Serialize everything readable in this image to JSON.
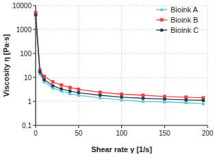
{
  "chart_data": {
    "type": "line",
    "x_label": "Shear rate γ [1/s]",
    "y_label": "Viscosity η [Pa·s]",
    "x": [
      0.1,
      5,
      10,
      20,
      30,
      40,
      50,
      75,
      100,
      125,
      150,
      175,
      195
    ],
    "series": [
      {
        "name": "Bioink A",
        "color": "#5bc8d8",
        "marker": "triangle",
        "values": [
          3000,
          14,
          6.5,
          3.6,
          2.7,
          2.1,
          1.8,
          1.4,
          1.15,
          1.0,
          0.95,
          0.88,
          0.8
        ]
      },
      {
        "name": "Bioink B",
        "color": "#e8474a",
        "marker": "square",
        "values": [
          5000,
          20,
          11,
          6.5,
          4.8,
          3.8,
          3.2,
          2.4,
          2.0,
          1.8,
          1.6,
          1.5,
          1.4
        ]
      },
      {
        "name": "Bioink C",
        "color": "#2d3e50",
        "marker": "circle",
        "values": [
          4000,
          17,
          8,
          4.5,
          3.3,
          2.7,
          2.3,
          1.8,
          1.5,
          1.35,
          1.25,
          1.15,
          1.1
        ]
      }
    ],
    "xlim": [
      0,
      200
    ],
    "xticks": [
      0,
      50,
      100,
      150,
      200
    ],
    "ylim": [
      0.1,
      10000
    ],
    "yticks": [
      0.1,
      1,
      10,
      100,
      1000,
      10000
    ],
    "log": "y",
    "grid": true,
    "legend": "upper right"
  }
}
